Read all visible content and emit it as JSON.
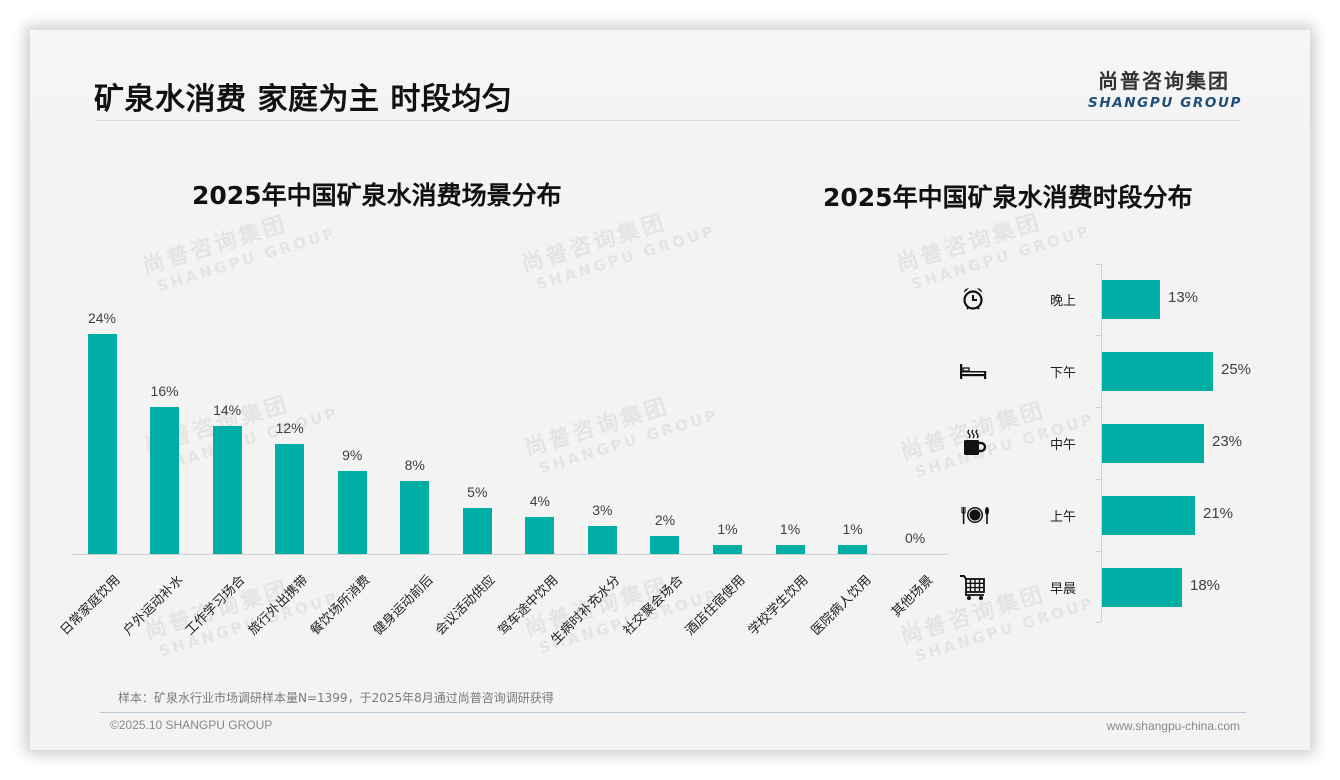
{
  "header": {
    "title": "矿泉水消费 家庭为主 时段均匀",
    "logo_cn": "尚普咨询集团",
    "logo_en": "SHANGPU GROUP"
  },
  "watermark": {
    "cn": "尚普咨询集团",
    "en": "SHANGPU GROUP"
  },
  "colors": {
    "bar": "#00aea6",
    "slide_bg": "#f3f3f3",
    "logo_en": "#1f4e79"
  },
  "chart_data": [
    {
      "type": "bar",
      "title": "2025年中国矿泉水消费场景分布",
      "xlabel": "",
      "ylabel": "",
      "ylim": [
        0,
        24
      ],
      "grid": false,
      "legend": null,
      "categories": [
        "日常家庭饮用",
        "户外运动补水",
        "工作学习场合",
        "旅行外出携带",
        "餐饮场所消费",
        "健身运动前后",
        "会议活动供应",
        "驾车途中饮用",
        "生病时补充水分",
        "社交聚会场合",
        "酒店住宿使用",
        "学校学生饮用",
        "医院病人饮用",
        "其他场景"
      ],
      "values": [
        24,
        16,
        14,
        12,
        9,
        8,
        5,
        4,
        3,
        2,
        1,
        1,
        1,
        0
      ],
      "labels": [
        "24%",
        "16%",
        "14%",
        "12%",
        "9%",
        "8%",
        "5%",
        "4%",
        "3%",
        "2%",
        "1%",
        "1%",
        "1%",
        "0%"
      ],
      "unit": "%"
    },
    {
      "type": "bar",
      "orientation": "horizontal",
      "title": "2025年中国矿泉水消费时段分布",
      "xlabel": "",
      "ylabel": "",
      "xlim": [
        0,
        25
      ],
      "grid": false,
      "legend": null,
      "categories": [
        "晚上",
        "下午",
        "中午",
        "上午",
        "早晨"
      ],
      "values": [
        13,
        25,
        23,
        21,
        18
      ],
      "labels": [
        "13%",
        "25%",
        "23%",
        "21%",
        "18%"
      ],
      "icons": [
        "alarm-clock-icon",
        "bed-icon",
        "coffee-cup-icon",
        "plate-cutlery-icon",
        "shopping-cart-icon"
      ],
      "unit": "%"
    }
  ],
  "footer": {
    "note": "样本：矿泉水行业市场调研样本量N=1399，于2025年8月通过尚普咨询调研获得",
    "copyright": "©2025.10 SHANGPU GROUP",
    "website": "www.shangpu-china.com"
  }
}
